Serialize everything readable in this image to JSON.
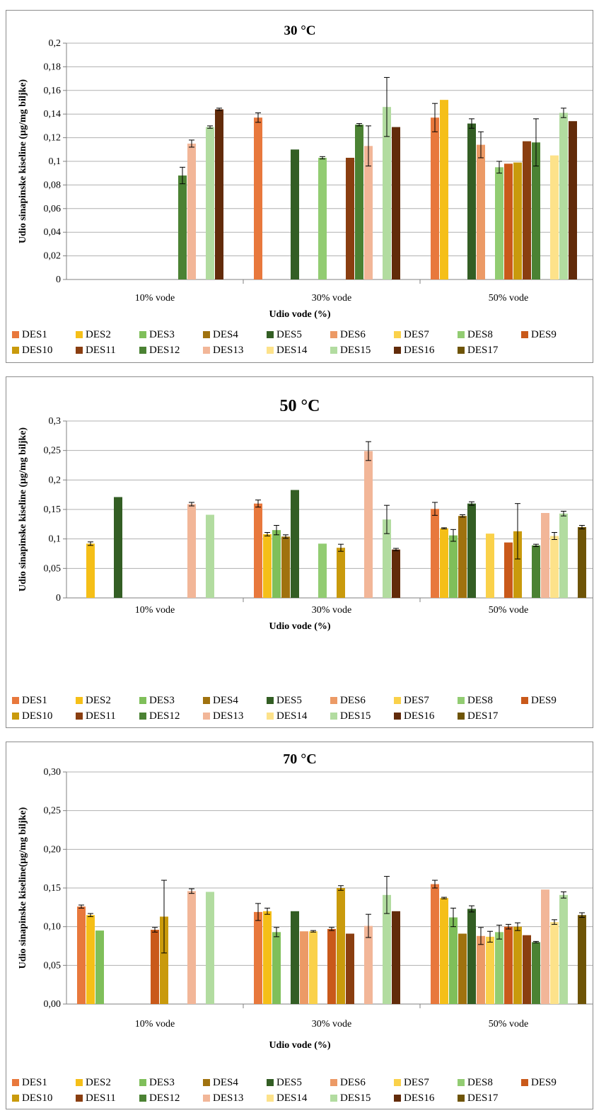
{
  "chart_data": [
    {
      "type": "bar",
      "title": "30 °C",
      "xlabel": "Udio  vode  (%)",
      "ylabel": "Udio  sinapinske kiseline (µg/mg biljke)",
      "categories": [
        "10% vode",
        "30% vode",
        "50% vode"
      ],
      "ylim": [
        0,
        0.2
      ],
      "yticks": [
        "0",
        "0,02",
        "0,04",
        "0,06",
        "0,08",
        "0,1",
        "0,12",
        "0,14",
        "0,16",
        "0,18",
        "0,2"
      ],
      "legend_position": "bottom",
      "series": [
        {
          "name": "DES1",
          "values": [
            null,
            0.137,
            0.137
          ],
          "errors": [
            null,
            0.004,
            0.012
          ]
        },
        {
          "name": "DES2",
          "values": [
            null,
            null,
            0.152
          ],
          "errors": [
            null,
            null,
            0
          ]
        },
        {
          "name": "DES3",
          "values": [
            null,
            null,
            null
          ],
          "errors": [
            null,
            null,
            null
          ]
        },
        {
          "name": "DES4",
          "values": [
            null,
            null,
            null
          ],
          "errors": [
            null,
            null,
            null
          ]
        },
        {
          "name": "DES5",
          "values": [
            null,
            0.11,
            0.132
          ],
          "errors": [
            null,
            0,
            0.004
          ]
        },
        {
          "name": "DES6",
          "values": [
            null,
            null,
            0.114
          ],
          "errors": [
            null,
            null,
            0.011
          ]
        },
        {
          "name": "DES7",
          "values": [
            null,
            null,
            null
          ],
          "errors": [
            null,
            null,
            null
          ]
        },
        {
          "name": "DES8",
          "values": [
            null,
            0.103,
            0.095
          ],
          "errors": [
            null,
            0.001,
            0.005
          ]
        },
        {
          "name": "DES9",
          "values": [
            null,
            null,
            0.098
          ],
          "errors": [
            null,
            null,
            0
          ]
        },
        {
          "name": "DES10",
          "values": [
            null,
            null,
            0.099
          ],
          "errors": [
            null,
            null,
            0
          ]
        },
        {
          "name": "DES11",
          "values": [
            null,
            0.103,
            0.117
          ],
          "errors": [
            null,
            0,
            0
          ]
        },
        {
          "name": "DES12",
          "values": [
            0.088,
            0.131,
            0.116
          ],
          "errors": [
            0.007,
            0.001,
            0.02
          ]
        },
        {
          "name": "DES13",
          "values": [
            0.115,
            0.113,
            null
          ],
          "errors": [
            0.003,
            0.017,
            null
          ]
        },
        {
          "name": "DES14",
          "values": [
            null,
            null,
            0.105
          ],
          "errors": [
            null,
            null,
            0
          ]
        },
        {
          "name": "DES15",
          "values": [
            0.129,
            0.146,
            0.141
          ],
          "errors": [
            0.001,
            0.025,
            0.004
          ]
        },
        {
          "name": "DES16",
          "values": [
            0.144,
            0.129,
            0.134
          ],
          "errors": [
            0.001,
            0,
            0
          ]
        },
        {
          "name": "DES17",
          "values": [
            null,
            null,
            null
          ],
          "errors": [
            null,
            null,
            null
          ]
        }
      ]
    },
    {
      "type": "bar",
      "title": "50 °C",
      "xlabel": "Udio  vode  (%)",
      "ylabel": "Udio  sinapinske kiseline (µg/mg biljke)",
      "categories": [
        "10% vode",
        "30% vode",
        "50% vode"
      ],
      "ylim": [
        0,
        0.3
      ],
      "yticks": [
        "0",
        "0,05",
        "0,1",
        "0,15",
        "0,2",
        "0,25",
        "0,3"
      ],
      "legend_position": "bottom",
      "series": [
        {
          "name": "DES1",
          "values": [
            null,
            0.16,
            0.151
          ],
          "errors": [
            null,
            0.006,
            0.011
          ]
        },
        {
          "name": "DES2",
          "values": [
            0.092,
            0.108,
            0.118
          ],
          "errors": [
            0.003,
            0.003,
            0.001
          ]
        },
        {
          "name": "DES3",
          "values": [
            null,
            0.115,
            0.106
          ],
          "errors": [
            null,
            0.008,
            0.01
          ]
        },
        {
          "name": "DES4",
          "values": [
            null,
            0.104,
            0.139
          ],
          "errors": [
            null,
            0.003,
            0.002
          ]
        },
        {
          "name": "DES5",
          "values": [
            0.171,
            0.183,
            0.16
          ],
          "errors": [
            0,
            0,
            0.003
          ]
        },
        {
          "name": "DES6",
          "values": [
            null,
            null,
            null
          ],
          "errors": [
            null,
            null,
            null
          ]
        },
        {
          "name": "DES7",
          "values": [
            null,
            null,
            0.109
          ],
          "errors": [
            null,
            null,
            0
          ]
        },
        {
          "name": "DES8",
          "values": [
            null,
            0.092,
            null
          ],
          "errors": [
            null,
            0,
            null
          ]
        },
        {
          "name": "DES9",
          "values": [
            null,
            null,
            0.094
          ],
          "errors": [
            null,
            null,
            0
          ]
        },
        {
          "name": "DES10",
          "values": [
            null,
            0.085,
            0.113
          ],
          "errors": [
            null,
            0.006,
            0.047
          ]
        },
        {
          "name": "DES11",
          "values": [
            null,
            null,
            null
          ],
          "errors": [
            null,
            null,
            null
          ]
        },
        {
          "name": "DES12",
          "values": [
            null,
            null,
            0.089
          ],
          "errors": [
            null,
            null,
            0.002
          ]
        },
        {
          "name": "DES13",
          "values": [
            0.159,
            0.249,
            0.144
          ],
          "errors": [
            0.003,
            0.016,
            0
          ]
        },
        {
          "name": "DES14",
          "values": [
            null,
            null,
            0.105
          ],
          "errors": [
            null,
            null,
            0.006
          ]
        },
        {
          "name": "DES15",
          "values": [
            0.141,
            0.133,
            0.143
          ],
          "errors": [
            0,
            0.024,
            0.004
          ]
        },
        {
          "name": "DES16",
          "values": [
            null,
            0.082,
            null
          ],
          "errors": [
            null,
            0.002,
            null
          ]
        },
        {
          "name": "DES17",
          "values": [
            null,
            null,
            0.12
          ],
          "errors": [
            null,
            null,
            0.003
          ]
        }
      ]
    },
    {
      "type": "bar",
      "title": "70 °C",
      "xlabel": "Udio  vode  (%)",
      "ylabel": "Udio  sinapinske kiseline(µg/mg biljke)",
      "categories": [
        "10% vode",
        "30% vode",
        "50% vode"
      ],
      "ylim": [
        0,
        0.3
      ],
      "yticks": [
        "0,00",
        "0,05",
        "0,10",
        "0,15",
        "0,20",
        "0,25",
        "0,30"
      ],
      "legend_position": "bottom",
      "series": [
        {
          "name": "DES1",
          "values": [
            0.126,
            0.119,
            0.155
          ],
          "errors": [
            0.002,
            0.011,
            0.005
          ]
        },
        {
          "name": "DES2",
          "values": [
            0.115,
            0.12,
            0.137
          ],
          "errors": [
            0.002,
            0.004,
            0.001
          ]
        },
        {
          "name": "DES3",
          "values": [
            0.095,
            0.093,
            0.112
          ],
          "errors": [
            0,
            0.006,
            0.012
          ]
        },
        {
          "name": "DES4",
          "values": [
            null,
            null,
            0.091
          ],
          "errors": [
            null,
            null,
            0
          ]
        },
        {
          "name": "DES5",
          "values": [
            null,
            0.12,
            0.123
          ],
          "errors": [
            null,
            0,
            0.004
          ]
        },
        {
          "name": "DES6",
          "values": [
            null,
            0.094,
            0.088
          ],
          "errors": [
            null,
            0,
            0.011
          ]
        },
        {
          "name": "DES7",
          "values": [
            null,
            0.094,
            0.087
          ],
          "errors": [
            null,
            0.001,
            0.007
          ]
        },
        {
          "name": "DES8",
          "values": [
            null,
            null,
            0.093
          ],
          "errors": [
            null,
            null,
            0.009
          ]
        },
        {
          "name": "DES9",
          "values": [
            0.096,
            0.097,
            0.1
          ],
          "errors": [
            0.003,
            0.002,
            0.003
          ]
        },
        {
          "name": "DES10",
          "values": [
            0.113,
            0.15,
            0.1
          ],
          "errors": [
            0.047,
            0.003,
            0.005
          ]
        },
        {
          "name": "DES11",
          "values": [
            null,
            0.091,
            0.089
          ],
          "errors": [
            null,
            0,
            0
          ]
        },
        {
          "name": "DES12",
          "values": [
            null,
            null,
            0.08
          ],
          "errors": [
            null,
            null,
            0.001
          ]
        },
        {
          "name": "DES13",
          "values": [
            0.146,
            0.101,
            0.148
          ],
          "errors": [
            0.003,
            0.015,
            0
          ]
        },
        {
          "name": "DES14",
          "values": [
            null,
            null,
            0.106
          ],
          "errors": [
            null,
            null,
            0.003
          ]
        },
        {
          "name": "DES15",
          "values": [
            0.145,
            0.141,
            0.141
          ],
          "errors": [
            0,
            0.024,
            0.004
          ]
        },
        {
          "name": "DES16",
          "values": [
            null,
            0.12,
            null
          ],
          "errors": [
            null,
            0,
            null
          ]
        },
        {
          "name": "DES17",
          "values": [
            null,
            null,
            0.115
          ],
          "errors": [
            null,
            null,
            0.003
          ]
        }
      ]
    }
  ],
  "colors": {
    "DES1": "#e8783c",
    "DES2": "#f5bf18",
    "DES3": "#7fbf5a",
    "DES4": "#a0720f",
    "DES5": "#335e24",
    "DES6": "#ec9a66",
    "DES7": "#fad14a",
    "DES8": "#92cc72",
    "DES9": "#c9591a",
    "DES10": "#c99a0c",
    "DES11": "#8a3e10",
    "DES12": "#4b8233",
    "DES13": "#f2b698",
    "DES14": "#fde28a",
    "DES15": "#b2dca0",
    "DES16": "#622b0a",
    "DES17": "#6e5406"
  }
}
